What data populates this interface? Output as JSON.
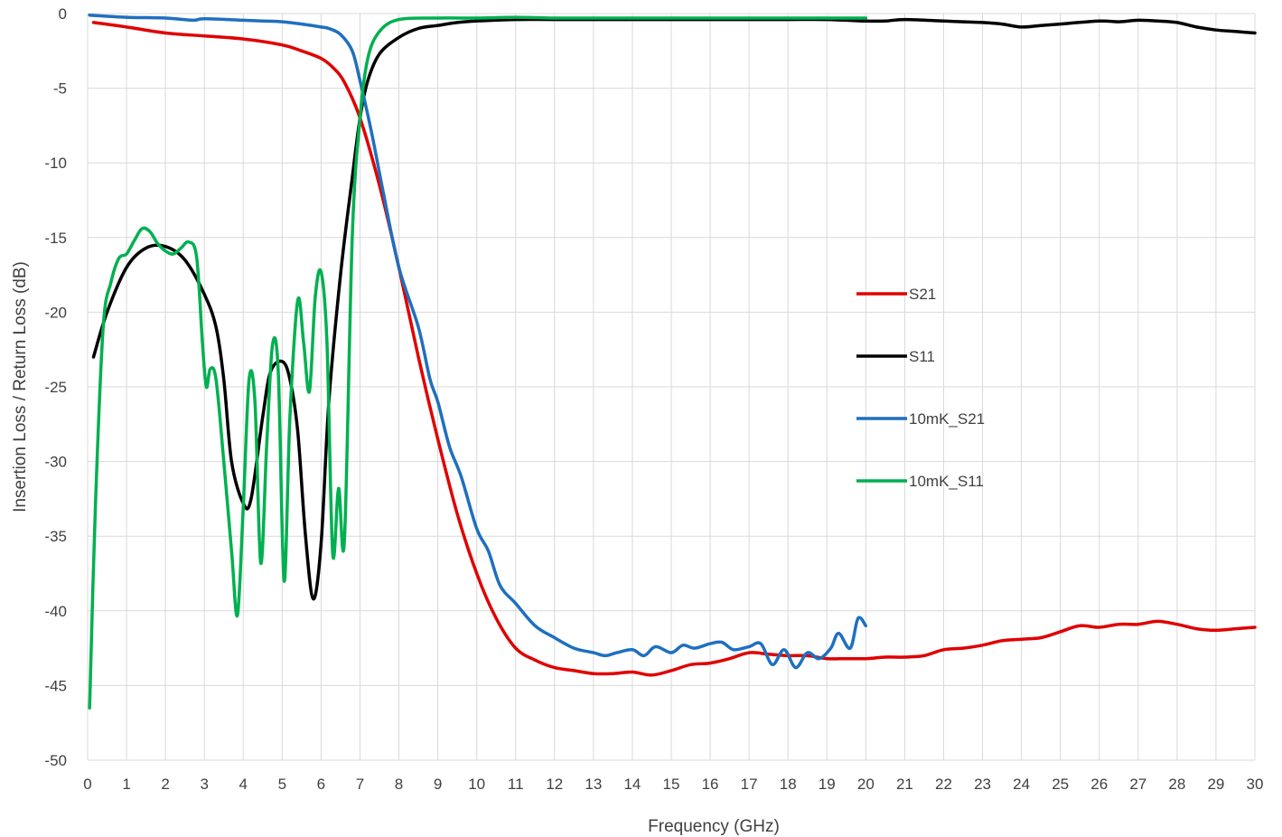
{
  "chart_data": {
    "type": "line",
    "xlabel": "Frequency (GHz)",
    "ylabel": "Insertion Loss / Return Loss (dB)",
    "xlim": [
      0,
      30
    ],
    "ylim": [
      -50,
      0
    ],
    "x_ticks": [
      0,
      1,
      2,
      3,
      4,
      5,
      6,
      7,
      8,
      9,
      10,
      11,
      12,
      13,
      14,
      15,
      16,
      17,
      18,
      19,
      20,
      21,
      22,
      23,
      24,
      25,
      26,
      27,
      28,
      29,
      30
    ],
    "y_ticks": [
      0,
      -5,
      -10,
      -15,
      -20,
      -25,
      -30,
      -35,
      -40,
      -45,
      -50
    ],
    "grid": true,
    "legend_position": "right",
    "series": [
      {
        "name": "S21",
        "color": "#e00000",
        "points": [
          [
            0.15,
            -0.6
          ],
          [
            1,
            -0.9
          ],
          [
            2,
            -1.3
          ],
          [
            3,
            -1.5
          ],
          [
            4,
            -1.7
          ],
          [
            5,
            -2.1
          ],
          [
            5.5,
            -2.5
          ],
          [
            6,
            -3.0
          ],
          [
            6.3,
            -3.6
          ],
          [
            6.6,
            -4.6
          ],
          [
            7,
            -7.0
          ],
          [
            7.5,
            -11.5
          ],
          [
            8,
            -17.0
          ],
          [
            8.5,
            -23.0
          ],
          [
            9,
            -28.5
          ],
          [
            9.5,
            -33.5
          ],
          [
            10,
            -37.5
          ],
          [
            10.5,
            -40.5
          ],
          [
            11,
            -42.5
          ],
          [
            11.5,
            -43.3
          ],
          [
            12,
            -43.8
          ],
          [
            12.5,
            -44.0
          ],
          [
            13,
            -44.2
          ],
          [
            13.5,
            -44.2
          ],
          [
            14,
            -44.1
          ],
          [
            14.5,
            -44.3
          ],
          [
            15,
            -44.0
          ],
          [
            15.5,
            -43.6
          ],
          [
            16,
            -43.5
          ],
          [
            16.5,
            -43.2
          ],
          [
            17,
            -42.8
          ],
          [
            17.5,
            -42.9
          ],
          [
            18,
            -43.0
          ],
          [
            18.5,
            -43.0
          ],
          [
            19,
            -43.2
          ],
          [
            19.5,
            -43.2
          ],
          [
            20,
            -43.2
          ],
          [
            20.5,
            -43.1
          ],
          [
            21,
            -43.1
          ],
          [
            21.5,
            -43.0
          ],
          [
            22,
            -42.6
          ],
          [
            22.5,
            -42.5
          ],
          [
            23,
            -42.3
          ],
          [
            23.5,
            -42.0
          ],
          [
            24,
            -41.9
          ],
          [
            24.5,
            -41.8
          ],
          [
            25,
            -41.4
          ],
          [
            25.5,
            -41.0
          ],
          [
            26,
            -41.1
          ],
          [
            26.5,
            -40.9
          ],
          [
            27,
            -40.9
          ],
          [
            27.5,
            -40.7
          ],
          [
            28,
            -40.9
          ],
          [
            28.5,
            -41.2
          ],
          [
            29,
            -41.3
          ],
          [
            29.5,
            -41.2
          ],
          [
            30,
            -41.1
          ]
        ]
      },
      {
        "name": "S11",
        "color": "#000000",
        "points": [
          [
            0.15,
            -23.0
          ],
          [
            0.5,
            -20.0
          ],
          [
            1,
            -17.0
          ],
          [
            1.5,
            -15.7
          ],
          [
            2,
            -15.6
          ],
          [
            2.5,
            -16.5
          ],
          [
            3,
            -18.8
          ],
          [
            3.3,
            -21.0
          ],
          [
            3.5,
            -24.5
          ],
          [
            3.7,
            -30.0
          ],
          [
            4,
            -32.8
          ],
          [
            4.2,
            -32.5
          ],
          [
            4.5,
            -27.0
          ],
          [
            4.7,
            -24.0
          ],
          [
            5,
            -23.3
          ],
          [
            5.2,
            -24.5
          ],
          [
            5.4,
            -28.0
          ],
          [
            5.6,
            -35.0
          ],
          [
            5.8,
            -39.2
          ],
          [
            6,
            -35.5
          ],
          [
            6.2,
            -26.0
          ],
          [
            6.5,
            -17.5
          ],
          [
            6.8,
            -11.0
          ],
          [
            7,
            -7.0
          ],
          [
            7.2,
            -4.5
          ],
          [
            7.5,
            -2.7
          ],
          [
            8,
            -1.6
          ],
          [
            8.5,
            -1.0
          ],
          [
            9,
            -0.8
          ],
          [
            9.5,
            -0.6
          ],
          [
            10,
            -0.5
          ],
          [
            11,
            -0.4
          ],
          [
            12,
            -0.4
          ],
          [
            13,
            -0.4
          ],
          [
            14,
            -0.4
          ],
          [
            15,
            -0.4
          ],
          [
            16,
            -0.4
          ],
          [
            17,
            -0.4
          ],
          [
            18,
            -0.4
          ],
          [
            19,
            -0.4
          ],
          [
            20,
            -0.5
          ],
          [
            20.5,
            -0.5
          ],
          [
            21,
            -0.4
          ],
          [
            22,
            -0.5
          ],
          [
            23,
            -0.6
          ],
          [
            23.5,
            -0.7
          ],
          [
            24,
            -0.9
          ],
          [
            24.5,
            -0.8
          ],
          [
            25,
            -0.7
          ],
          [
            26,
            -0.5
          ],
          [
            26.5,
            -0.55
          ],
          [
            27,
            -0.45
          ],
          [
            27.5,
            -0.5
          ],
          [
            28,
            -0.6
          ],
          [
            28.5,
            -0.9
          ],
          [
            29,
            -1.1
          ],
          [
            29.5,
            -1.2
          ],
          [
            30,
            -1.3
          ]
        ]
      },
      {
        "name": "10mK_S21",
        "color": "#1f6fbf",
        "points": [
          [
            0.05,
            -0.1
          ],
          [
            1,
            -0.25
          ],
          [
            2,
            -0.3
          ],
          [
            2.7,
            -0.45
          ],
          [
            3,
            -0.35
          ],
          [
            4,
            -0.45
          ],
          [
            4.5,
            -0.5
          ],
          [
            5,
            -0.55
          ],
          [
            5.5,
            -0.7
          ],
          [
            6,
            -0.9
          ],
          [
            6.2,
            -1.0
          ],
          [
            6.5,
            -1.4
          ],
          [
            6.8,
            -2.5
          ],
          [
            7,
            -4.5
          ],
          [
            7.3,
            -8.0
          ],
          [
            7.6,
            -12.0
          ],
          [
            8,
            -17.0
          ],
          [
            8.5,
            -21.0
          ],
          [
            8.8,
            -24.5
          ],
          [
            9,
            -26.0
          ],
          [
            9.3,
            -29.0
          ],
          [
            9.6,
            -31.0
          ],
          [
            10,
            -34.5
          ],
          [
            10.3,
            -36.0
          ],
          [
            10.6,
            -38.3
          ],
          [
            11,
            -39.5
          ],
          [
            11.5,
            -41.0
          ],
          [
            12,
            -41.8
          ],
          [
            12.5,
            -42.5
          ],
          [
            13,
            -42.8
          ],
          [
            13.3,
            -43.0
          ],
          [
            13.6,
            -42.8
          ],
          [
            14,
            -42.6
          ],
          [
            14.3,
            -43.0
          ],
          [
            14.6,
            -42.4
          ],
          [
            15,
            -42.8
          ],
          [
            15.3,
            -42.3
          ],
          [
            15.6,
            -42.5
          ],
          [
            16,
            -42.2
          ],
          [
            16.3,
            -42.1
          ],
          [
            16.6,
            -42.6
          ],
          [
            17,
            -42.4
          ],
          [
            17.3,
            -42.2
          ],
          [
            17.6,
            -43.6
          ],
          [
            17.9,
            -42.6
          ],
          [
            18.2,
            -43.8
          ],
          [
            18.5,
            -42.8
          ],
          [
            18.8,
            -43.2
          ],
          [
            19.1,
            -42.5
          ],
          [
            19.3,
            -41.5
          ],
          [
            19.6,
            -42.5
          ],
          [
            19.8,
            -40.5
          ],
          [
            20,
            -41.0
          ]
        ]
      },
      {
        "name": "10mK_S11",
        "color": "#00b050",
        "points": [
          [
            0.05,
            -46.5
          ],
          [
            0.2,
            -33.0
          ],
          [
            0.4,
            -21.0
          ],
          [
            0.6,
            -18.0
          ],
          [
            0.8,
            -16.4
          ],
          [
            1.0,
            -16.1
          ],
          [
            1.2,
            -15.2
          ],
          [
            1.4,
            -14.4
          ],
          [
            1.6,
            -14.6
          ],
          [
            1.8,
            -15.4
          ],
          [
            2,
            -15.9
          ],
          [
            2.2,
            -16.1
          ],
          [
            2.4,
            -15.7
          ],
          [
            2.6,
            -15.3
          ],
          [
            2.8,
            -16.3
          ],
          [
            2.95,
            -22.0
          ],
          [
            3.05,
            -25.0
          ],
          [
            3.15,
            -23.8
          ],
          [
            3.3,
            -24.5
          ],
          [
            3.5,
            -30.0
          ],
          [
            3.7,
            -36.0
          ],
          [
            3.85,
            -40.3
          ],
          [
            4.0,
            -33.0
          ],
          [
            4.15,
            -24.5
          ],
          [
            4.3,
            -26.0
          ],
          [
            4.45,
            -36.8
          ],
          [
            4.6,
            -29.0
          ],
          [
            4.75,
            -22.2
          ],
          [
            4.9,
            -24.0
          ],
          [
            5.05,
            -38.0
          ],
          [
            5.2,
            -27.0
          ],
          [
            5.4,
            -19.2
          ],
          [
            5.55,
            -22.0
          ],
          [
            5.7,
            -25.3
          ],
          [
            5.85,
            -19.0
          ],
          [
            6.0,
            -17.3
          ],
          [
            6.15,
            -22.0
          ],
          [
            6.3,
            -36.2
          ],
          [
            6.45,
            -31.8
          ],
          [
            6.6,
            -35.3
          ],
          [
            6.8,
            -15.0
          ],
          [
            7.0,
            -7.0
          ],
          [
            7.2,
            -3.0
          ],
          [
            7.5,
            -1.2
          ],
          [
            8,
            -0.4
          ],
          [
            9,
            -0.3
          ],
          [
            10,
            -0.3
          ],
          [
            11,
            -0.25
          ],
          [
            12,
            -0.3
          ],
          [
            13,
            -0.3
          ],
          [
            14,
            -0.3
          ],
          [
            15,
            -0.3
          ],
          [
            16,
            -0.3
          ],
          [
            17,
            -0.3
          ],
          [
            18,
            -0.3
          ],
          [
            19,
            -0.3
          ],
          [
            20,
            -0.3
          ]
        ]
      }
    ]
  }
}
